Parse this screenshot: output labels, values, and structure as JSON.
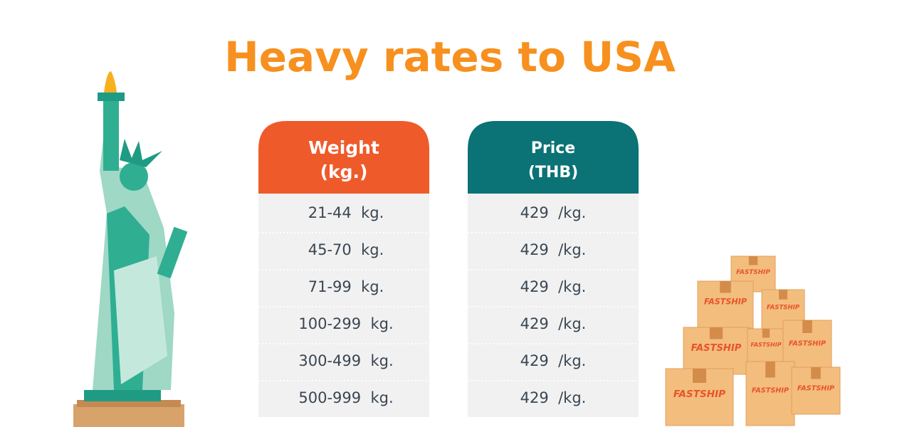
{
  "header": {
    "title": "Heavy rates to USA"
  },
  "table": {
    "columns": [
      {
        "line1": "Weight",
        "line2": "(kg.)"
      },
      {
        "line1": "Price",
        "line2": "(THB)"
      }
    ],
    "rows": [
      [
        "21-44  kg.",
        "429  /kg."
      ],
      [
        "45-70  kg.",
        "429  /kg."
      ],
      [
        "71-99  kg.",
        "429  /kg."
      ],
      [
        "100-299  kg.",
        "429  /kg."
      ],
      [
        "300-499  kg.",
        "429  /kg."
      ],
      [
        "500-999  kg.",
        "429  /kg."
      ]
    ]
  },
  "boxes": {
    "label": "FASTSHIP"
  }
}
